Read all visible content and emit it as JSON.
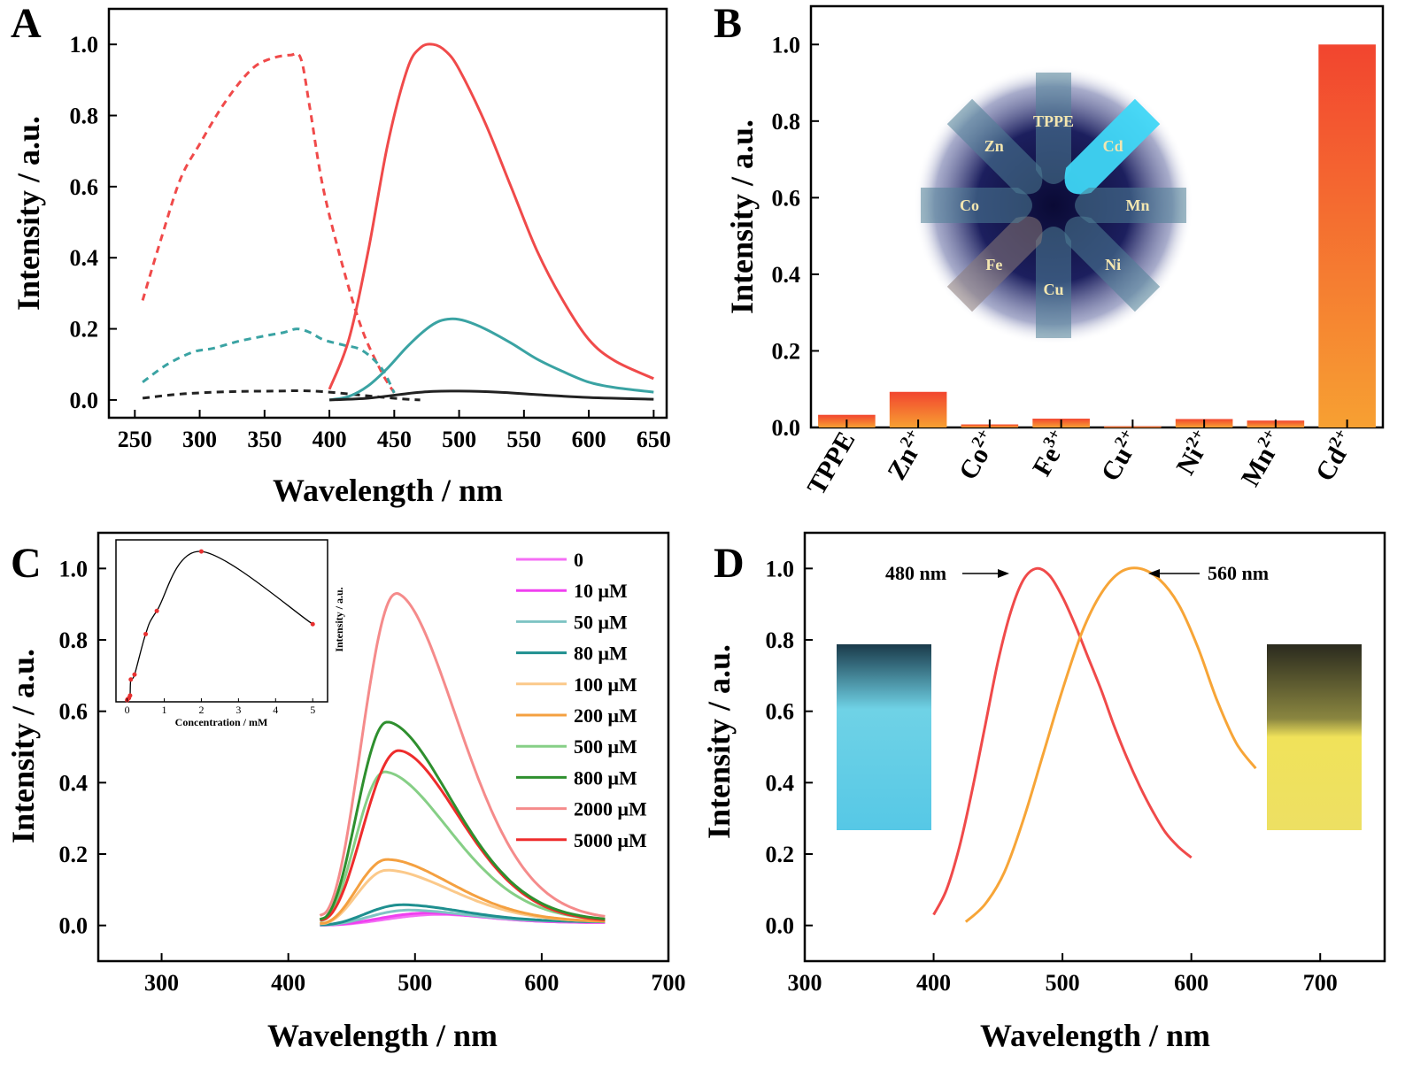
{
  "panels": {
    "A": {
      "label": "A"
    },
    "B": {
      "label": "B"
    },
    "C": {
      "label": "C"
    },
    "D": {
      "label": "D"
    }
  },
  "colors": {
    "red": "#f04a4a",
    "teal": "#3aa3a3",
    "black": "#222222",
    "bar_top": "#f2452f",
    "bar_bottom": "#f7a032"
  },
  "chart_data": [
    {
      "panel": "A",
      "type": "line",
      "xlabel": "Wavelength / nm",
      "ylabel": "Intensity / a.u.",
      "xlim": [
        230,
        660
      ],
      "ylim": [
        -0.05,
        1.1
      ],
      "xticks": [
        250,
        300,
        350,
        400,
        450,
        500,
        550,
        600,
        650
      ],
      "yticks": [
        0.0,
        0.2,
        0.4,
        0.6,
        0.8,
        1.0
      ],
      "series": [
        {
          "style": "dashed",
          "color": "#f04a4a",
          "x": [
            256,
            270,
            285,
            300,
            320,
            340,
            355,
            370,
            378,
            385,
            395,
            410,
            425,
            440,
            450
          ],
          "y": [
            0.28,
            0.45,
            0.62,
            0.72,
            0.84,
            0.93,
            0.96,
            0.97,
            0.96,
            0.82,
            0.6,
            0.38,
            0.2,
            0.08,
            0.02
          ]
        },
        {
          "style": "dashed",
          "color": "#3aa3a3",
          "x": [
            256,
            275,
            295,
            310,
            330,
            350,
            365,
            375,
            385,
            395,
            410,
            425,
            440,
            450
          ],
          "y": [
            0.05,
            0.1,
            0.135,
            0.145,
            0.165,
            0.18,
            0.19,
            0.2,
            0.19,
            0.17,
            0.155,
            0.14,
            0.09,
            0.02
          ]
        },
        {
          "style": "dashed",
          "color": "#222222",
          "x": [
            256,
            280,
            300,
            330,
            360,
            380,
            400,
            420,
            440,
            460,
            470
          ],
          "y": [
            0.005,
            0.015,
            0.02,
            0.024,
            0.025,
            0.026,
            0.022,
            0.015,
            0.008,
            0.002,
            0.0
          ]
        },
        {
          "style": "solid",
          "color": "#f04a4a",
          "x": [
            400,
            415,
            430,
            445,
            460,
            470,
            480,
            490,
            500,
            520,
            540,
            560,
            580,
            600,
            620,
            650
          ],
          "y": [
            0.03,
            0.17,
            0.42,
            0.72,
            0.93,
            0.99,
            1.0,
            0.98,
            0.93,
            0.78,
            0.6,
            0.42,
            0.28,
            0.17,
            0.11,
            0.06
          ]
        },
        {
          "style": "solid",
          "color": "#3aa3a3",
          "x": [
            400,
            415,
            430,
            445,
            460,
            475,
            485,
            495,
            505,
            520,
            540,
            560,
            580,
            600,
            620,
            650
          ],
          "y": [
            0.0,
            0.01,
            0.04,
            0.09,
            0.15,
            0.2,
            0.222,
            0.228,
            0.222,
            0.2,
            0.16,
            0.115,
            0.08,
            0.05,
            0.035,
            0.022
          ]
        },
        {
          "style": "solid",
          "color": "#222222",
          "x": [
            400,
            430,
            460,
            480,
            500,
            530,
            560,
            600,
            650
          ],
          "y": [
            0.0,
            0.005,
            0.018,
            0.024,
            0.025,
            0.022,
            0.015,
            0.007,
            0.002
          ]
        }
      ]
    },
    {
      "panel": "B",
      "type": "bar",
      "ylabel": "Intensity / a.u.",
      "ylim": [
        0,
        1.1
      ],
      "yticks": [
        0.0,
        0.2,
        0.4,
        0.6,
        0.8,
        1.0
      ],
      "categories": [
        "TPPE",
        "Zn2+",
        "Co2+",
        "Fe3+",
        "Cu2+",
        "Ni2+",
        "Mn2+",
        "Cd2+"
      ],
      "category_labels": [
        {
          "base": "TPPE",
          "sup": ""
        },
        {
          "base": "Zn",
          "sup": "2+"
        },
        {
          "base": "Co",
          "sup": "2+"
        },
        {
          "base": "Fe",
          "sup": "3+"
        },
        {
          "base": "Cu",
          "sup": "2+"
        },
        {
          "base": "Ni",
          "sup": "2+"
        },
        {
          "base": "Mn",
          "sup": "2+"
        },
        {
          "base": "Cd",
          "sup": "2+"
        }
      ],
      "values": [
        0.033,
        0.093,
        0.008,
        0.023,
        0.003,
        0.022,
        0.018,
        1.0
      ],
      "inset_photo_labels": [
        "TPPE",
        "Cd",
        "Mn",
        "Ni",
        "Cu",
        "Fe",
        "Co",
        "Zn"
      ]
    },
    {
      "panel": "C",
      "type": "line",
      "xlabel": "Wavelength / nm",
      "ylabel": "Intensity / a.u.",
      "xlim": [
        250,
        700
      ],
      "ylim": [
        -0.1,
        1.1
      ],
      "xticks": [
        300,
        400,
        500,
        600,
        700
      ],
      "yticks": [
        0.0,
        0.2,
        0.4,
        0.6,
        0.8,
        1.0
      ],
      "x_start": 425,
      "x_end": 650,
      "series": [
        {
          "name": "0",
          "color": "#f56ef5",
          "peak_x": 520,
          "peak_y": 0.031,
          "end_y": 0.008
        },
        {
          "name": "10 μM",
          "color": "#f040f0",
          "peak_x": 510,
          "peak_y": 0.035,
          "end_y": 0.008
        },
        {
          "name": "50 μM",
          "color": "#7fc4c4",
          "peak_x": 495,
          "peak_y": 0.043,
          "end_y": 0.01
        },
        {
          "name": "80 μM",
          "color": "#1e8f8f",
          "peak_x": 490,
          "peak_y": 0.058,
          "end_y": 0.01
        },
        {
          "name": "100 μM",
          "color": "#fbc98a",
          "peak_x": 478,
          "peak_y": 0.155,
          "end_y": 0.01
        },
        {
          "name": "200 μM",
          "color": "#f4a040",
          "peak_x": 478,
          "peak_y": 0.185,
          "end_y": 0.01
        },
        {
          "name": "500 μM",
          "color": "#86cf86",
          "peak_x": 476,
          "peak_y": 0.43,
          "end_y": 0.012
        },
        {
          "name": "800 μM",
          "color": "#2e8f2e",
          "peak_x": 478,
          "peak_y": 0.57,
          "end_y": 0.012
        },
        {
          "name": "2000 μM",
          "color": "#f58b8b",
          "peak_x": 485,
          "peak_y": 0.93,
          "end_y": 0.015
        },
        {
          "name": "5000 μM",
          "color": "#ee2c2c",
          "peak_x": 487,
          "peak_y": 0.49,
          "end_y": 0.01
        }
      ],
      "inset": {
        "type": "line",
        "xlabel": "Concentration / mM",
        "ylabel": "Intensity / a.u.",
        "xlim": [
          -0.3,
          5.4
        ],
        "ylim": [
          0.02,
          1.0
        ],
        "xticks": [
          0,
          1,
          2,
          3,
          4,
          5
        ],
        "x": [
          0.0,
          0.01,
          0.05,
          0.08,
          0.1,
          0.2,
          0.5,
          0.8,
          2.0,
          5.0
        ],
        "y": [
          0.03,
          0.035,
          0.043,
          0.058,
          0.155,
          0.185,
          0.43,
          0.57,
          0.93,
          0.49
        ]
      }
    },
    {
      "panel": "D",
      "type": "line",
      "xlabel": "Wavelength / nm",
      "ylabel": "Intensity / a.u.",
      "xlim": [
        300,
        750
      ],
      "ylim": [
        -0.1,
        1.1
      ],
      "xticks": [
        300,
        400,
        500,
        600,
        700
      ],
      "yticks": [
        0.0,
        0.2,
        0.4,
        0.6,
        0.8,
        1.0
      ],
      "series": [
        {
          "color": "#f04a4a",
          "x": [
            400,
            410,
            420,
            430,
            440,
            450,
            460,
            470,
            480,
            490,
            500,
            510,
            520,
            530,
            540,
            550,
            560,
            570,
            580,
            590,
            600
          ],
          "y": [
            0.03,
            0.1,
            0.22,
            0.38,
            0.56,
            0.74,
            0.88,
            0.97,
            1.0,
            0.98,
            0.92,
            0.84,
            0.75,
            0.66,
            0.56,
            0.47,
            0.39,
            0.32,
            0.26,
            0.22,
            0.19
          ]
        },
        {
          "color": "#f7a537",
          "x": [
            425,
            440,
            455,
            470,
            485,
            500,
            515,
            530,
            545,
            560,
            575,
            590,
            605,
            620,
            635,
            650
          ],
          "y": [
            0.01,
            0.06,
            0.15,
            0.3,
            0.48,
            0.66,
            0.82,
            0.93,
            0.99,
            1.0,
            0.97,
            0.9,
            0.78,
            0.63,
            0.51,
            0.44
          ]
        }
      ],
      "annotations": [
        "480 nm",
        "560 nm"
      ]
    }
  ]
}
